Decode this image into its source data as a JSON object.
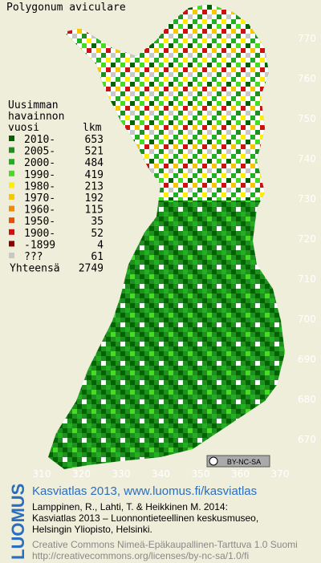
{
  "title": "Polygonum aviculare",
  "legend": {
    "heading": [
      "Uusimman",
      "havainnon",
      "vuosi"
    ],
    "count_header": "lkm",
    "entries": [
      {
        "label": "2010-",
        "count": 653,
        "color": "#006400"
      },
      {
        "label": "2005-",
        "count": 521,
        "color": "#1f8f1f"
      },
      {
        "label": "2000-",
        "count": 484,
        "color": "#22b022"
      },
      {
        "label": "1990-",
        "count": 419,
        "color": "#44dd22"
      },
      {
        "label": "1980-",
        "count": 213,
        "color": "#ffee00"
      },
      {
        "label": "1970-",
        "count": 192,
        "color": "#f5c800"
      },
      {
        "label": "1960-",
        "count": 115,
        "color": "#f58a00"
      },
      {
        "label": "1950-",
        "count": 35,
        "color": "#e85000"
      },
      {
        "label": "1900-",
        "count": 52,
        "color": "#d01010"
      },
      {
        "label": "-1899",
        "count": 4,
        "color": "#8a0000"
      },
      {
        "label": "???",
        "count": 61,
        "color": "#c8c8c8"
      }
    ],
    "total_label": "Yhteensä",
    "total": 2749
  },
  "grid_y": [
    770,
    760,
    750,
    740,
    730,
    720,
    710,
    700,
    690,
    680,
    670
  ],
  "grid_x": [
    310,
    320,
    330,
    340,
    350,
    360,
    370
  ],
  "license_badge": "BY-NC-SA",
  "footer": {
    "brand": "LUOMUS",
    "title": "Kasviatlas 2013, www.luomus.fi/kasviatlas",
    "citation": [
      "Lamppinen, R., Lahti, T. & Heikkinen M. 2014:",
      "Kasviatlas 2013 – Luonnontieteellinen keskusmuseo,",
      "Helsingin Yliopisto, Helsinki."
    ],
    "license": [
      "Creative Commons Nimeä-Epäkaupallinen-Tarttuva 1.0 Suomi",
      "http://creativecommons.org/licenses/by-nc-sa/1.0/fi"
    ]
  }
}
